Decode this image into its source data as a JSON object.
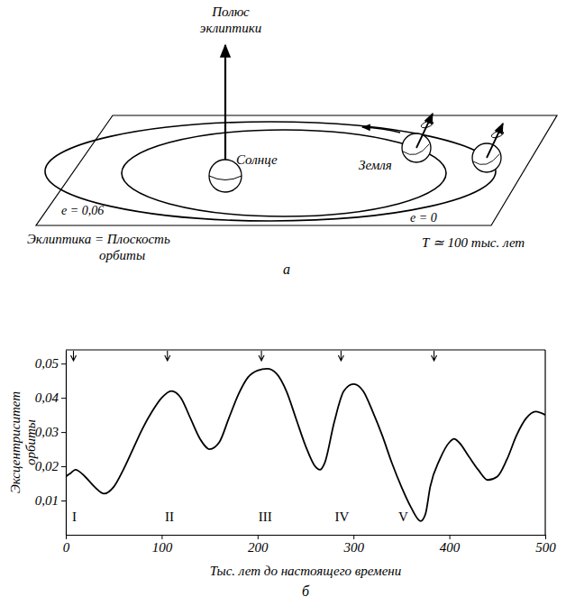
{
  "diagram": {
    "panel_label": "а",
    "pole_label": "Полюс эклиптики",
    "sun_label": "Солнце",
    "earth_label": "Земля",
    "orbits": [
      {
        "label": "e = 0,06"
      },
      {
        "label": "e = 0"
      }
    ],
    "plane_label": "Эклиптика = Плоскость орбиты",
    "period_label": "T ≃ 100 тыс. лет"
  },
  "chart_data": {
    "type": "line",
    "title": "б",
    "color": "#000000",
    "x_label": "Тыс. лет до настоящего времени",
    "y_label": "Эксцентриситет орбиты",
    "x": [
      0,
      5,
      10,
      20,
      30,
      40,
      50,
      60,
      70,
      80,
      90,
      100,
      110,
      115,
      120,
      130,
      140,
      150,
      160,
      170,
      180,
      190,
      200,
      210,
      220,
      230,
      240,
      250,
      260,
      265,
      270,
      280,
      290,
      300,
      310,
      320,
      330,
      340,
      350,
      360,
      370,
      375,
      380,
      390,
      400,
      405,
      410,
      420,
      430,
      440,
      450,
      460,
      470,
      480,
      490,
      500
    ],
    "values": [
      0.017,
      0.018,
      0.019,
      0.017,
      0.014,
      0.012,
      0.014,
      0.019,
      0.025,
      0.031,
      0.036,
      0.04,
      0.042,
      0.0415,
      0.04,
      0.034,
      0.028,
      0.025,
      0.027,
      0.034,
      0.041,
      0.046,
      0.048,
      0.0485,
      0.047,
      0.042,
      0.034,
      0.026,
      0.02,
      0.019,
      0.021,
      0.033,
      0.042,
      0.044,
      0.042,
      0.036,
      0.029,
      0.021,
      0.014,
      0.008,
      0.004,
      0.006,
      0.014,
      0.022,
      0.027,
      0.028,
      0.027,
      0.023,
      0.019,
      0.016,
      0.017,
      0.022,
      0.029,
      0.034,
      0.036,
      0.035
    ],
    "xlim": [
      0,
      500
    ],
    "xticks": [
      0,
      100,
      200,
      300,
      400,
      500
    ],
    "ylim": [
      0,
      0.054
    ],
    "yticks": [
      {
        "value": 0.01,
        "label": "0,01"
      },
      {
        "value": 0.02,
        "label": "0,02"
      },
      {
        "value": 0.03,
        "label": "0,03"
      },
      {
        "value": 0.04,
        "label": "0,04"
      },
      {
        "value": 0.05,
        "label": "0,05"
      }
    ],
    "annotations": [
      {
        "text": "I",
        "x": 9,
        "y": 0.004,
        "arrow_x": 8
      },
      {
        "text": "II",
        "x": 108,
        "y": 0.004,
        "arrow_x": 106
      },
      {
        "text": "III",
        "x": 208,
        "y": 0.004,
        "arrow_x": 204
      },
      {
        "text": "IV",
        "x": 288,
        "y": 0.004,
        "arrow_x": 287
      },
      {
        "text": "V",
        "x": 352,
        "y": 0.004,
        "arrow_x": 384
      }
    ]
  }
}
